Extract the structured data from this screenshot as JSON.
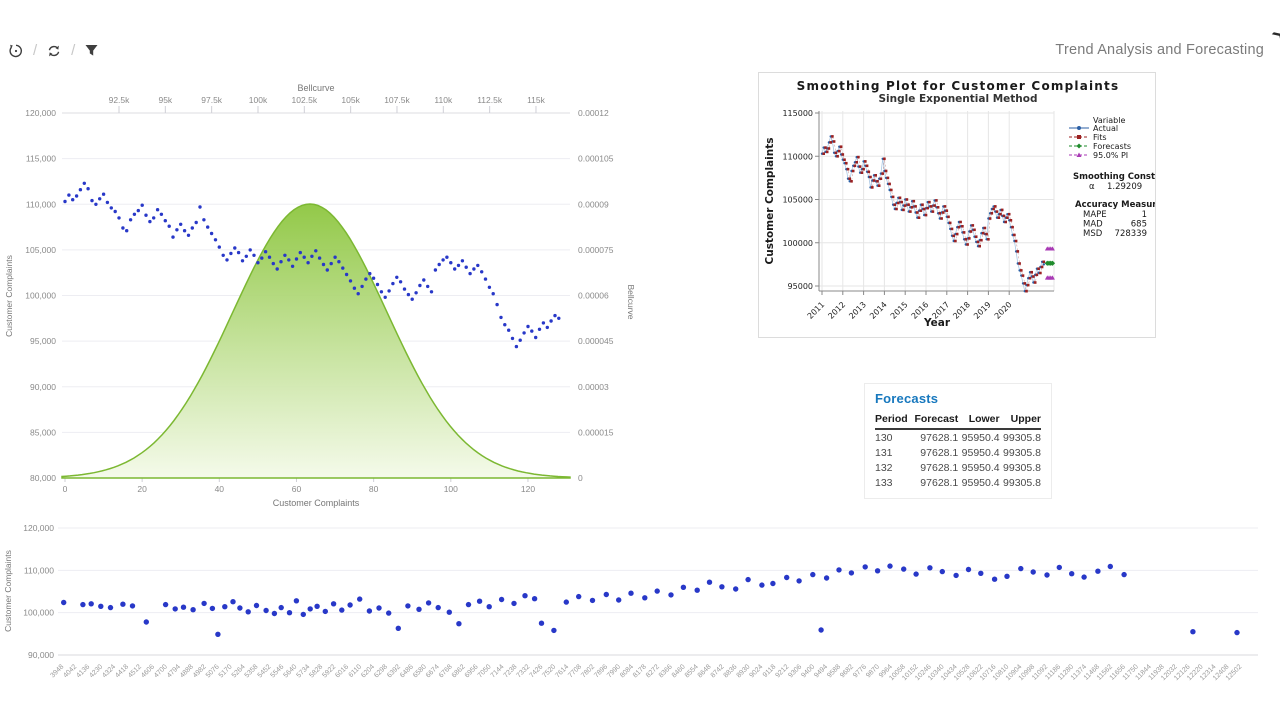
{
  "header": {
    "title": "Trend Analysis and Forecasting",
    "expand_icon": "❯"
  },
  "toolbar": {
    "icons": [
      "history",
      "refresh",
      "filter"
    ],
    "separator": "/"
  },
  "forecasts_table": {
    "title": "Forecasts",
    "columns": [
      "Period",
      "Forecast",
      "Lower",
      "Upper"
    ],
    "rows": [
      [
        "130",
        "97628.1",
        "95950.4",
        "99305.8"
      ],
      [
        "131",
        "97628.1",
        "95950.4",
        "99305.8"
      ],
      [
        "132",
        "97628.1",
        "95950.4",
        "99305.8"
      ],
      [
        "133",
        "97628.1",
        "95950.4",
        "99305.8"
      ]
    ]
  },
  "chart_data": [
    {
      "type": "scatter",
      "name": "complaints-with-bellcurve",
      "xlabel": "Customer Complaints",
      "ylabel_left": "Customer Complaints",
      "ylabel_right": "Bellcurve",
      "top_axis_label": "Bellcurve",
      "x_ticks": [
        0,
        20,
        40,
        60,
        80,
        100,
        120
      ],
      "y_ticks_left": [
        "120,000",
        "115,000",
        "110,000",
        "105,000",
        "100,000",
        "95,000",
        "90,000",
        "85,000",
        "80,000"
      ],
      "y_ticks_right": [
        "0.00012",
        "0.000105",
        "0.00009",
        "0.000075",
        "0.00006",
        "0.000045",
        "0.00003",
        "0.000015",
        "0"
      ],
      "top_ticks": [
        "92.5k",
        "95k",
        "97.5k",
        "100k",
        "102.5k",
        "105k",
        "107.5k",
        "110k",
        "112.5k",
        "115k"
      ],
      "ylim_left": [
        80000,
        120000
      ],
      "ylim_right": [
        0,
        0.00012
      ],
      "series_y_thousands": [
        110.3,
        111.0,
        110.5,
        110.9,
        111.6,
        112.3,
        111.7,
        110.4,
        110.0,
        110.6,
        111.1,
        110.2,
        109.6,
        109.2,
        108.5,
        107.4,
        107.1,
        108.3,
        108.9,
        109.3,
        109.9,
        108.8,
        108.1,
        108.5,
        109.4,
        108.9,
        108.2,
        107.6,
        106.4,
        107.2,
        107.8,
        107.1,
        106.6,
        107.4,
        108.0,
        109.7,
        108.3,
        107.5,
        106.8,
        106.1,
        105.3,
        104.4,
        103.9,
        104.6,
        105.2,
        104.7,
        103.8,
        104.3,
        105.0,
        104.4,
        103.6,
        104.1,
        104.8,
        104.2,
        103.5,
        102.9,
        103.7,
        104.4,
        103.9,
        103.2,
        104.0,
        104.7,
        104.2,
        103.6,
        104.3,
        104.9,
        104.1,
        103.4,
        102.8,
        103.5,
        104.2,
        103.7,
        103.0,
        102.3,
        101.6,
        100.8,
        100.2,
        101.0,
        101.8,
        102.4,
        101.9,
        101.2,
        100.4,
        99.8,
        100.5,
        101.3,
        102.0,
        101.5,
        100.7,
        100.1,
        99.6,
        100.3,
        101.1,
        101.7,
        101.0,
        100.4,
        102.8,
        103.4,
        103.9,
        104.2,
        103.6,
        102.9,
        103.3,
        103.8,
        103.1,
        102.4,
        102.9,
        103.3,
        102.6,
        101.8,
        100.9,
        100.2,
        99.0,
        97.6,
        96.8,
        96.2,
        95.3,
        94.4,
        95.1,
        95.9,
        96.6,
        96.1,
        95.4,
        96.3,
        97.0,
        96.5,
        97.2,
        97.8,
        97.5
      ],
      "bellcurve": {
        "mean_k": 102.8,
        "sigma_k": 4.15,
        "peak_density": 9e-05,
        "fill_top": "#8dc63f",
        "fill_bottom": "#f4fae9",
        "stroke": "#7cb832"
      },
      "point_color": "#2838c8"
    },
    {
      "type": "line",
      "name": "smoothing-plot",
      "title": "Smoothing Plot for Customer Complaints",
      "subtitle": "Single Exponential Method",
      "xlabel": "Year",
      "ylabel": "Customer Complaints",
      "x_ticks": [
        2011,
        2012,
        2013,
        2014,
        2015,
        2016,
        2017,
        2018,
        2019,
        2020
      ],
      "y_ticks": [
        "115000",
        "110000",
        "105000",
        "100000",
        "95000"
      ],
      "legend": {
        "header": "Variable",
        "items": [
          {
            "label": "Actual",
            "color": "#2b5fa5",
            "marker": "circle",
            "dashed": false
          },
          {
            "label": "Fits",
            "color": "#9b2121",
            "marker": "square",
            "dashed": true
          },
          {
            "label": "Forecasts",
            "color": "#1f8b2c",
            "marker": "diamond",
            "dashed": true
          },
          {
            "label": "95.0% PI",
            "color": "#a93ab5",
            "marker": "triangle",
            "dashed": true
          }
        ]
      },
      "smoothing_constant": {
        "label": "Smoothing Constant",
        "alpha_symbol": "α",
        "alpha": "1.29209"
      },
      "accuracy": {
        "label": "Accuracy Measures",
        "rows": [
          [
            "MAPE",
            "1"
          ],
          [
            "MAD",
            "685"
          ],
          [
            "MSD",
            "728339"
          ]
        ]
      },
      "forecast_value_k": 97.6281,
      "pi_upper_k": 99.3058,
      "pi_lower_k": 95.9504,
      "forecast_periods": [
        130,
        131,
        132,
        133
      ]
    },
    {
      "type": "scatter",
      "name": "complaints-by-index",
      "ylabel": "Customer Complaints",
      "y_ticks": [
        "120,000",
        "110,000",
        "100,000",
        "90,000"
      ],
      "ylim": [
        90000,
        120000
      ],
      "x_ticks": [
        3948,
        4042,
        4136,
        4230,
        4324,
        4418,
        4512,
        4606,
        4700,
        4794,
        4888,
        4982,
        5076,
        5170,
        5264,
        5358,
        5452,
        5546,
        5640,
        5734,
        5828,
        5922,
        6016,
        6110,
        6204,
        6298,
        6392,
        6486,
        6580,
        6674,
        6768,
        6862,
        6956,
        7050,
        7144,
        7238,
        7332,
        7426,
        7520,
        7614,
        7708,
        7802,
        7896,
        7990,
        8084,
        8178,
        8272,
        8366,
        8460,
        8554,
        8648,
        8742,
        8836,
        8930,
        9024,
        9118,
        9212,
        9306,
        9400,
        9494,
        9588,
        9682,
        9776,
        9870,
        9964,
        10058,
        10152,
        10246,
        10340,
        10434,
        10528,
        10622,
        10716,
        10810,
        10904,
        10998,
        11092,
        11186,
        11280,
        11374,
        11468,
        11562,
        11656,
        11750,
        11844,
        11938,
        12032,
        12126,
        12220,
        12314,
        12408,
        12502
      ],
      "point_color": "#2838c8",
      "points": [
        [
          3960,
          102.4
        ],
        [
          4100,
          101.9
        ],
        [
          4160,
          102.1
        ],
        [
          4230,
          101.5
        ],
        [
          4300,
          101.2
        ],
        [
          4390,
          102.0
        ],
        [
          4460,
          101.6
        ],
        [
          4560,
          97.8
        ],
        [
          4700,
          101.9
        ],
        [
          4770,
          100.9
        ],
        [
          4830,
          101.3
        ],
        [
          4900,
          100.7
        ],
        [
          4980,
          102.2
        ],
        [
          5040,
          101.0
        ],
        [
          5080,
          94.9
        ],
        [
          5130,
          101.4
        ],
        [
          5190,
          102.6
        ],
        [
          5240,
          101.1
        ],
        [
          5300,
          100.2
        ],
        [
          5360,
          101.7
        ],
        [
          5430,
          100.5
        ],
        [
          5490,
          99.8
        ],
        [
          5540,
          101.2
        ],
        [
          5600,
          100.0
        ],
        [
          5650,
          102.8
        ],
        [
          5700,
          99.6
        ],
        [
          5750,
          100.9
        ],
        [
          5800,
          101.5
        ],
        [
          5860,
          100.3
        ],
        [
          5920,
          102.1
        ],
        [
          5980,
          100.6
        ],
        [
          6040,
          101.8
        ],
        [
          6110,
          103.2
        ],
        [
          6180,
          100.4
        ],
        [
          6250,
          101.1
        ],
        [
          6320,
          99.9
        ],
        [
          6390,
          96.3
        ],
        [
          6460,
          101.6
        ],
        [
          6540,
          100.8
        ],
        [
          6610,
          102.3
        ],
        [
          6680,
          101.2
        ],
        [
          6760,
          100.1
        ],
        [
          6830,
          97.4
        ],
        [
          6900,
          101.9
        ],
        [
          6980,
          102.7
        ],
        [
          7050,
          101.4
        ],
        [
          7140,
          103.1
        ],
        [
          7230,
          102.2
        ],
        [
          7310,
          104.0
        ],
        [
          7380,
          103.3
        ],
        [
          7430,
          97.5
        ],
        [
          7520,
          95.8
        ],
        [
          7610,
          102.5
        ],
        [
          7700,
          103.8
        ],
        [
          7800,
          102.9
        ],
        [
          7900,
          104.3
        ],
        [
          7990,
          103.0
        ],
        [
          8080,
          104.6
        ],
        [
          8180,
          103.5
        ],
        [
          8270,
          105.1
        ],
        [
          8370,
          104.2
        ],
        [
          8460,
          106.0
        ],
        [
          8560,
          105.3
        ],
        [
          8650,
          107.2
        ],
        [
          8740,
          106.1
        ],
        [
          8840,
          105.6
        ],
        [
          8930,
          107.8
        ],
        [
          9030,
          106.5
        ],
        [
          9110,
          106.9
        ],
        [
          9210,
          108.3
        ],
        [
          9300,
          107.5
        ],
        [
          9400,
          109.0
        ],
        [
          9460,
          95.9
        ],
        [
          9500,
          108.2
        ],
        [
          9590,
          110.1
        ],
        [
          9680,
          109.4
        ],
        [
          9780,
          110.8
        ],
        [
          9870,
          109.9
        ],
        [
          9960,
          111.0
        ],
        [
          10060,
          110.3
        ],
        [
          10150,
          109.1
        ],
        [
          10250,
          110.6
        ],
        [
          10340,
          109.7
        ],
        [
          10440,
          108.8
        ],
        [
          10530,
          110.2
        ],
        [
          10620,
          109.3
        ],
        [
          10720,
          107.9
        ],
        [
          10810,
          108.6
        ],
        [
          10910,
          110.4
        ],
        [
          11000,
          109.6
        ],
        [
          11100,
          108.9
        ],
        [
          11190,
          110.7
        ],
        [
          11280,
          109.2
        ],
        [
          11370,
          108.4
        ],
        [
          11470,
          109.8
        ],
        [
          11560,
          110.9
        ],
        [
          11660,
          109.0
        ],
        [
          12160,
          95.5
        ],
        [
          12480,
          95.3
        ]
      ]
    }
  ]
}
